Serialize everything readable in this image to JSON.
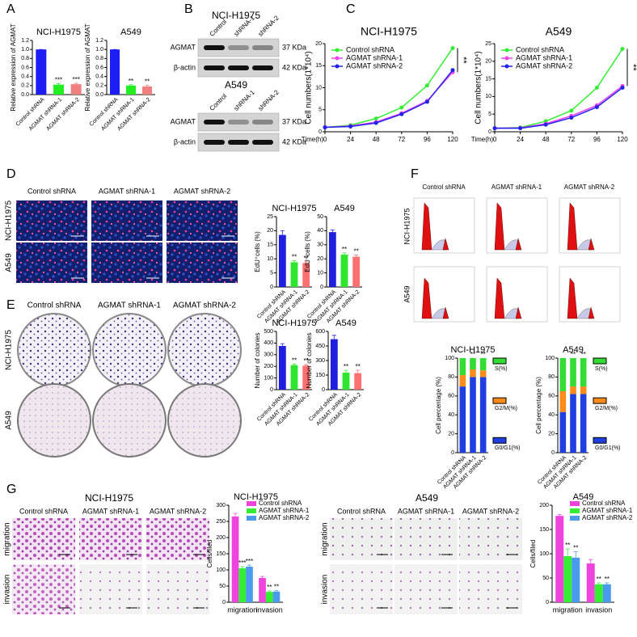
{
  "figure": {
    "panels": [
      "A",
      "B",
      "C",
      "D",
      "E",
      "F",
      "G"
    ],
    "western": {
      "titles": [
        "NCI-H1975",
        "A549"
      ],
      "lanes": [
        "Control",
        "shRNA-1",
        "shRNA-2"
      ],
      "proteins": [
        "AGMAT",
        "β-actin"
      ],
      "sizes": [
        "37 KDa",
        "42 KDa"
      ]
    },
    "images": {
      "columns": [
        "Control shRNA",
        "AGMAT shRNA-1",
        "AGMAT shRNA-2"
      ],
      "rows": [
        "NCI-H1975",
        "A549"
      ],
      "assay_rows": [
        "migration",
        "invasion"
      ],
      "assay_titles": [
        "NCI-H1975",
        "A549"
      ]
    }
  },
  "chart_data": [
    {
      "type": "bar",
      "title": "NCI-H1975",
      "y_label": "Relative expression of AGMAT",
      "categories": [
        "Control shRNA",
        "AGMAT shRNA-1",
        "AGMAT shRNA-2"
      ],
      "values": [
        1.0,
        0.22,
        0.23
      ],
      "errors": [
        0,
        0.02,
        0.02
      ],
      "colors": [
        "#1d1df5",
        "#22ee22",
        "#f08080"
      ],
      "significance": [
        null,
        "***",
        "***"
      ],
      "ylim": [
        0,
        1.2
      ],
      "yticks": [
        {
          "value": 0,
          "label": "0.0"
        },
        {
          "value": 0.2,
          "label": "0.2"
        },
        {
          "value": 0.4,
          "label": "0.4"
        },
        {
          "value": 0.6,
          "label": "0.6"
        },
        {
          "value": 0.8,
          "label": "0.8"
        },
        {
          "value": 1,
          "label": "1.0"
        },
        {
          "value": 1.2,
          "label": "1.2"
        }
      ]
    },
    {
      "type": "bar",
      "title": "A549",
      "y_label": "Relative expression of AGMAT",
      "categories": [
        "Control shRNA",
        "AGMAT shRNA-1",
        "AGMAT shRNA-2"
      ],
      "values": [
        1.0,
        0.2,
        0.18
      ],
      "errors": [
        0,
        0.02,
        0.03
      ],
      "colors": [
        "#1d1df5",
        "#22ee22",
        "#f08080"
      ],
      "significance": [
        null,
        "**",
        "**"
      ],
      "ylim": [
        0,
        1.2
      ],
      "yticks": [
        {
          "value": 0,
          "label": "0.0"
        },
        {
          "value": 0.2,
          "label": "0.2"
        },
        {
          "value": 0.4,
          "label": "0.4"
        },
        {
          "value": 0.6,
          "label": "0.6"
        },
        {
          "value": 0.8,
          "label": "0.8"
        },
        {
          "value": 1,
          "label": "1.0"
        },
        {
          "value": 1.2,
          "label": "1.2"
        }
      ]
    },
    {
      "type": "line",
      "title": "NCI-H1975",
      "y_label": "Cell numbers(1*10⁴)",
      "x_label": "Time(h)",
      "x": [
        0,
        24,
        48,
        72,
        96,
        120
      ],
      "series": [
        {
          "name": "Control shRNA",
          "color": "#33ee33",
          "values": [
            1,
            1.5,
            3,
            5.5,
            10.5,
            19
          ]
        },
        {
          "name": "AGMAT shRNA-1",
          "color": "#ee44ee",
          "values": [
            1,
            1.3,
            2.2,
            4.2,
            7,
            13.5
          ]
        },
        {
          "name": "AGMAT shRNA-2",
          "color": "#2222ee",
          "values": [
            1,
            1.2,
            2,
            4,
            6.8,
            14
          ]
        }
      ],
      "annotation": "**",
      "xlim": [
        0,
        120
      ],
      "xticks": [
        0,
        24,
        48,
        72,
        96,
        120
      ],
      "ylim": [
        0,
        20
      ],
      "yticks": [
        0,
        5,
        10,
        15,
        20
      ]
    },
    {
      "type": "line",
      "title": "A549",
      "y_label": "Cell numbers(1*10⁴)",
      "x_label": "Time(h)",
      "x": [
        0,
        24,
        48,
        72,
        96,
        120
      ],
      "series": [
        {
          "name": "Control shRNA",
          "color": "#33ee33",
          "values": [
            1,
            1.2,
            3,
            6,
            12.5,
            23.5
          ]
        },
        {
          "name": "AGMAT shRNA-1",
          "color": "#ee44ee",
          "values": [
            1,
            1.1,
            2.3,
            4.5,
            7.5,
            13
          ]
        },
        {
          "name": "AGMAT shRNA-2",
          "color": "#2222ee",
          "values": [
            1,
            1,
            2,
            4,
            7,
            12.5
          ]
        }
      ],
      "annotation": "**",
      "xlim": [
        0,
        120
      ],
      "xticks": [
        0,
        24,
        48,
        72,
        96,
        120
      ],
      "ylim": [
        0,
        25
      ],
      "yticks": [
        0,
        5,
        10,
        15,
        20,
        25
      ]
    },
    {
      "type": "bar",
      "title": "NCI-H1975",
      "y_label": "EdU⁺cells (%)",
      "categories": [
        "Control shRNA",
        "AGMAT shRNA-1",
        "AGMAT shRNA-2"
      ],
      "values": [
        18.5,
        8.8,
        8.5
      ],
      "errors": [
        1.5,
        0.6,
        0.5
      ],
      "colors": [
        "#1f1fe0",
        "#2ee62e",
        "#ff7070"
      ],
      "significance": [
        null,
        "**",
        "**"
      ],
      "ylim": [
        0,
        25
      ],
      "yticks": [
        0,
        5,
        10,
        15,
        20,
        25
      ]
    },
    {
      "type": "bar",
      "title": "A549",
      "y_label": "EdU⁺cells (%)",
      "categories": [
        "Control shRNA",
        "AGMAT shRNA-1",
        "AGMAT shRNA-2"
      ],
      "values": [
        39,
        23,
        21.5
      ],
      "errors": [
        1.5,
        1.2,
        1.2
      ],
      "colors": [
        "#1f1fe0",
        "#2ee62e",
        "#ff7070"
      ],
      "significance": [
        null,
        "**",
        "**"
      ],
      "ylim": [
        0,
        50
      ],
      "yticks": [
        0,
        10,
        20,
        30,
        40,
        50
      ]
    },
    {
      "type": "bar",
      "title": "NCI-H1975",
      "y_label": "Number of colonies",
      "categories": [
        "Control shRNA",
        "AGMAT shRNA-1",
        "AGMAT shRNA-2"
      ],
      "values": [
        375,
        210,
        205
      ],
      "errors": [
        20,
        10,
        10
      ],
      "colors": [
        "#1f1fe0",
        "#2ee62e",
        "#ff7070"
      ],
      "significance": [
        null,
        "**",
        "**"
      ],
      "ylim": [
        0,
        500
      ],
      "yticks": [
        0,
        100,
        200,
        300,
        400,
        500
      ]
    },
    {
      "type": "bar",
      "title": "A549",
      "y_label": "Number of colonies",
      "categories": [
        "Control shRNA",
        "AGMAT shRNA-1",
        "AGMAT shRNA-2"
      ],
      "values": [
        520,
        175,
        170
      ],
      "errors": [
        40,
        25,
        30
      ],
      "colors": [
        "#1f1fe0",
        "#2ee62e",
        "#ff7070"
      ],
      "significance": [
        null,
        "**",
        "**"
      ],
      "ylim": [
        0,
        600
      ],
      "yticks": [
        0,
        150,
        300,
        450,
        600
      ]
    },
    {
      "type": "bar",
      "barmode": "stack",
      "title": "NCI-H1975",
      "y_label": "Cell percentage (%)",
      "categories": [
        "Control shRNA",
        "AGMAT shRNA-1",
        "AGMAT shRNA-2"
      ],
      "series": [
        {
          "name": "G0/G1(%)",
          "color": "#1f3fe0",
          "values": [
            70,
            80,
            80
          ]
        },
        {
          "name": "G2/M(%)",
          "color": "#ff8c1a",
          "values": [
            12,
            8,
            7
          ]
        },
        {
          "name": "S(%)",
          "color": "#33dd33",
          "values": [
            18,
            12,
            13
          ]
        }
      ],
      "significance": [
        null,
        "**",
        "**"
      ],
      "ylim": [
        0,
        100
      ],
      "yticks": [
        0,
        20,
        40,
        60,
        80,
        100
      ]
    },
    {
      "type": "bar",
      "barmode": "stack",
      "title": "A549",
      "y_label": "Cell percentage (%)",
      "categories": [
        "Control shRNA",
        "AGMAT shRNA-1",
        "AGMAT shRNA-2"
      ],
      "series": [
        {
          "name": "G0/G1(%)",
          "color": "#1f3fe0",
          "values": [
            43,
            62,
            62
          ]
        },
        {
          "name": "G2/M(%)",
          "color": "#ff8c1a",
          "values": [
            22,
            8,
            8
          ]
        },
        {
          "name": "S(%)",
          "color": "#33dd33",
          "values": [
            35,
            30,
            30
          ]
        }
      ],
      "significance": [
        null,
        "**",
        "**"
      ],
      "ylim": [
        0,
        100
      ],
      "yticks": [
        0,
        20,
        40,
        60,
        80,
        100
      ]
    },
    {
      "type": "bar",
      "barmode": "group",
      "title": "NCI-H1975",
      "y_label": "Cells/filed",
      "categories": [
        "migration",
        "invasion"
      ],
      "series": [
        {
          "name": "Control shRNA",
          "color": "#ee44dd",
          "values": [
            265,
            75
          ],
          "errors": [
            10,
            5
          ],
          "significance": [
            null,
            null
          ]
        },
        {
          "name": "AGMAT shRNA-1",
          "color": "#33ee33",
          "values": [
            105,
            32
          ],
          "errors": [
            5,
            3
          ],
          "significance": [
            "***",
            "**"
          ]
        },
        {
          "name": "AGMAT shRNA-2",
          "color": "#4a9aee",
          "values": [
            110,
            33
          ],
          "errors": [
            5,
            3
          ],
          "significance": [
            "***",
            "**"
          ]
        }
      ],
      "ylim": [
        0,
        300
      ],
      "yticks": [
        0,
        50,
        100,
        150,
        200,
        250,
        300
      ]
    },
    {
      "type": "bar",
      "barmode": "group",
      "title": "A549",
      "y_label": "Cells/filed",
      "categories": [
        "migration",
        "invasion"
      ],
      "series": [
        {
          "name": "Control shRNA",
          "color": "#ee44dd",
          "values": [
            178,
            80
          ],
          "errors": [
            3,
            8
          ],
          "significance": [
            null,
            null
          ]
        },
        {
          "name": "AGMAT shRNA-1",
          "color": "#33ee33",
          "values": [
            95,
            37
          ],
          "errors": [
            15,
            3
          ],
          "significance": [
            "**",
            "**"
          ]
        },
        {
          "name": "AGMAT shRNA-2",
          "color": "#4a9aee",
          "values": [
            92,
            37
          ],
          "errors": [
            12,
            3
          ],
          "significance": [
            "**",
            "**"
          ]
        }
      ],
      "ylim": [
        0,
        200
      ],
      "yticks": [
        0,
        50,
        100,
        150,
        200
      ]
    }
  ]
}
